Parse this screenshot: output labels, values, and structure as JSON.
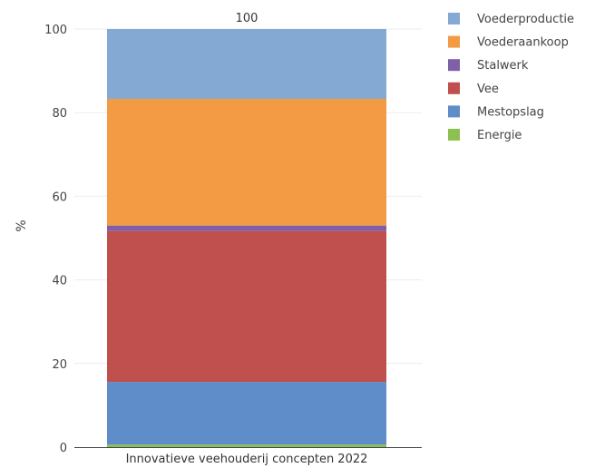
{
  "chart_data": {
    "type": "bar",
    "stacked": true,
    "title": "",
    "xlabel": "",
    "ylabel": "%",
    "ylim": [
      0,
      100
    ],
    "yticks": [
      0,
      20,
      40,
      60,
      80,
      100
    ],
    "grid": true,
    "legend_position": "top-right",
    "categories": [
      "Innovatieve veehouderij concepten 2022"
    ],
    "total_labels": [
      "100"
    ],
    "series": [
      {
        "name": "Energie",
        "values": [
          0.6
        ],
        "color": "#8cc152"
      },
      {
        "name": "Mestopslag",
        "values": [
          15.0
        ],
        "color": "#5f8dc9"
      },
      {
        "name": "Vee",
        "values": [
          36.1
        ],
        "color": "#c0504d"
      },
      {
        "name": "Stalwerk",
        "values": [
          1.3
        ],
        "color": "#7e5fa8"
      },
      {
        "name": "Voederaankoop",
        "values": [
          30.3
        ],
        "color": "#f39a45"
      },
      {
        "name": "Voederproductie",
        "values": [
          16.7
        ],
        "color": "#84a9d2"
      }
    ],
    "legend_order": [
      "Voederproductie",
      "Voederaankoop",
      "Stalwerk",
      "Vee",
      "Mestopslag",
      "Energie"
    ]
  }
}
